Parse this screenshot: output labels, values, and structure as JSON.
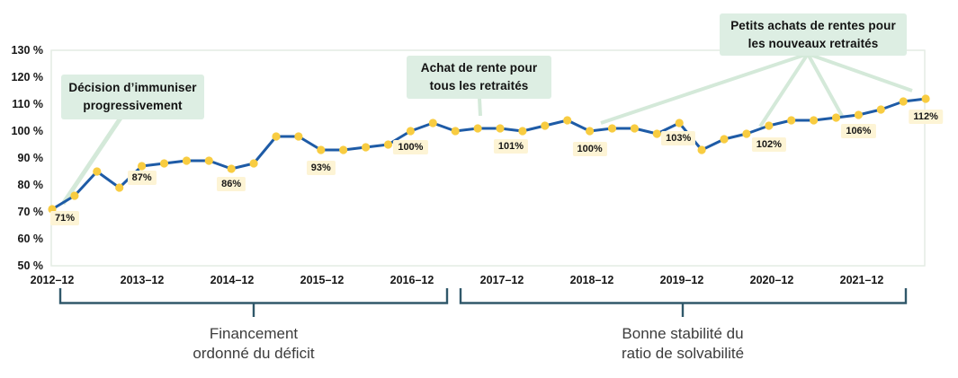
{
  "chart_data": {
    "type": "line",
    "title": "",
    "xlabel": "",
    "ylabel": "",
    "grid": "off",
    "legend": "none",
    "ylim": [
      50,
      130
    ],
    "y_tick_labels": [
      "130 %",
      "120 %",
      "110 %",
      "100 %",
      "90 %",
      "80 %",
      "70 %",
      "60 %",
      "50 %"
    ],
    "x_tick_labels": [
      "2012–12",
      "2013–12",
      "2014–12",
      "2015–12",
      "2016–12",
      "2017–12",
      "2018–12",
      "2019–12",
      "2020–12",
      "2021–12"
    ],
    "x_frequency": "quarterly",
    "x_range_start": "2012-12",
    "x_range_end": "2022-09",
    "series": [
      {
        "name": "Ratio de solvabilité",
        "values": [
          71,
          76,
          85,
          79,
          87,
          88,
          89,
          89,
          86,
          88,
          98,
          98,
          93,
          93,
          94,
          95,
          100,
          103,
          100,
          101,
          101,
          100,
          102,
          104,
          100,
          101,
          101,
          99,
          103,
          93,
          97,
          99,
          102,
          104,
          104,
          105,
          106,
          108,
          111,
          112
        ]
      }
    ],
    "point_labels": [
      {
        "index": 0,
        "text": "71%"
      },
      {
        "index": 4,
        "text": "87%"
      },
      {
        "index": 8,
        "text": "86%"
      },
      {
        "index": 12,
        "text": "93%"
      },
      {
        "index": 16,
        "text": "100%"
      },
      {
        "index": 20,
        "text": "101%"
      },
      {
        "index": 24,
        "text": "100%"
      },
      {
        "index": 28,
        "text": "103%"
      },
      {
        "index": 32,
        "text": "102%"
      },
      {
        "index": 36,
        "text": "106%"
      },
      {
        "index": 39,
        "text": "112%"
      }
    ]
  },
  "annotations": [
    {
      "line1": "Décision d’immuniser",
      "line2": "progressivement"
    },
    {
      "line1": "Achat de rente pour",
      "line2": "tous les retraités"
    },
    {
      "line1": "Petits achats de rentes pour",
      "line2": "les nouveaux retraités"
    }
  ],
  "brackets": [
    {
      "line1": "Financement",
      "line2": "ordonné du déficit"
    },
    {
      "line1": "Bonne stabilité du",
      "line2": "ratio de solvabilité"
    }
  ],
  "colors": {
    "line": "#1e5ba6",
    "marker": "#f8cc41",
    "badge_bg": "#fdf4d5",
    "annotation_bg": "#ddeee3",
    "connector": "#d4e9d9",
    "bracket": "#30586a",
    "axis_text": "#161616",
    "plot_border": "#e4ece4"
  }
}
